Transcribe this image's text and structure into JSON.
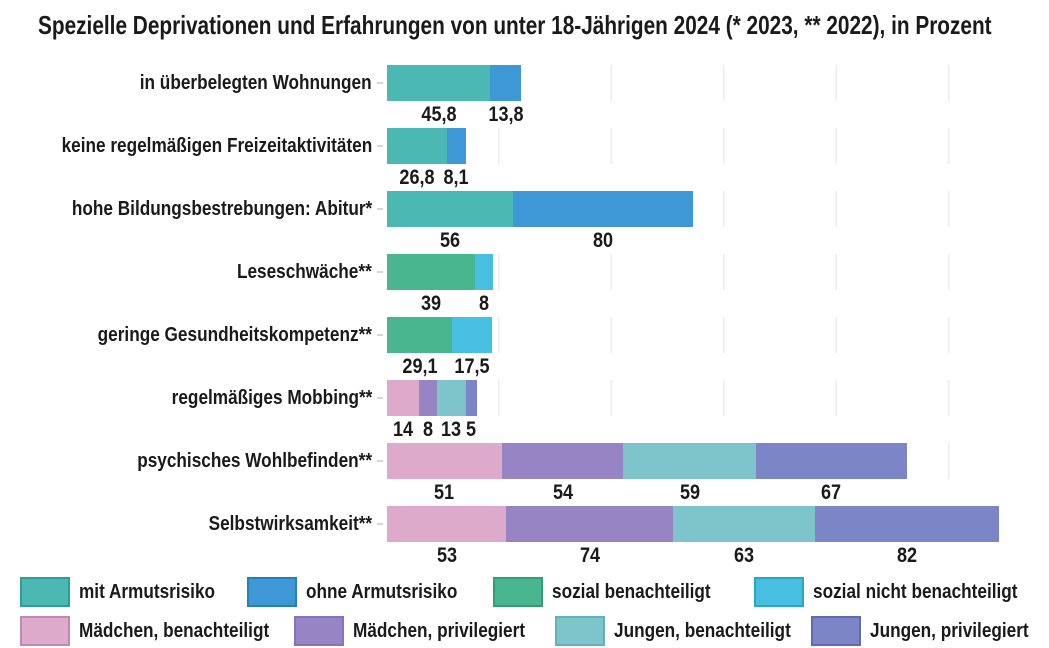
{
  "title": "Spezielle Deprivationen und Erfahrungen von unter 18-Jährigen 2024 (* 2023, ** 2022), in Prozent",
  "text_color": "#1a1a1a",
  "grid_color": "#ececec",
  "chart_data": {
    "type": "bar",
    "orientation": "horizontal",
    "stacked": true,
    "unit": "Prozent",
    "xlim": [
      0,
      294
    ],
    "x_gridline_interval": 50,
    "grid": true,
    "legend_position": "bottom",
    "series": [
      {
        "name": "mit Armutsrisiko",
        "color": "#4cb8b4",
        "border": "#2d9e9a"
      },
      {
        "name": "ohne Armutsrisiko",
        "color": "#3e98d6",
        "border": "#2280bf"
      },
      {
        "name": "sozial benachteiligt",
        "color": "#4ab690",
        "border": "#2f9e78"
      },
      {
        "name": "sozial nicht benachteiligt",
        "color": "#46bfe1",
        "border": "#26a6c9"
      },
      {
        "name": "Mädchen, benachteiligt",
        "color": "#deaacb",
        "border": "#c387b3"
      },
      {
        "name": "Mädchen, privilegiert",
        "color": "#9784c4",
        "border": "#8673bb"
      },
      {
        "name": "Jungen, benachteiligt",
        "color": "#7ec5cb",
        "border": "#60b1b9"
      },
      {
        "name": "Jungen, privilegiert",
        "color": "#7c86c6",
        "border": "#5f6cb4"
      }
    ],
    "rows": [
      {
        "label": "in überbelegten Wohnungen",
        "segments": [
          {
            "series": 0,
            "value": 45.8,
            "text": "45,8"
          },
          {
            "series": 1,
            "value": 13.8,
            "text": "13,8"
          }
        ]
      },
      {
        "label": "keine regelmäßigen Freizeitaktivitäten",
        "segments": [
          {
            "series": 0,
            "value": 26.8,
            "text": "26,8"
          },
          {
            "series": 1,
            "value": 8.1,
            "text": "8,1"
          }
        ]
      },
      {
        "label": "hohe Bildungsbestrebungen: Abitur*",
        "segments": [
          {
            "series": 0,
            "value": 56,
            "text": "56"
          },
          {
            "series": 1,
            "value": 80,
            "text": "80"
          }
        ]
      },
      {
        "label": "Leseschwäche**",
        "segments": [
          {
            "series": 2,
            "value": 39,
            "text": "39"
          },
          {
            "series": 3,
            "value": 8,
            "text": "8"
          }
        ]
      },
      {
        "label": "geringe Gesundheitskompetenz**",
        "segments": [
          {
            "series": 2,
            "value": 29.1,
            "text": "29,1"
          },
          {
            "series": 3,
            "value": 17.5,
            "text": "17,5"
          }
        ]
      },
      {
        "label": "regelmäßiges Mobbing**",
        "segments": [
          {
            "series": 4,
            "value": 14,
            "text": "14"
          },
          {
            "series": 5,
            "value": 8,
            "text": "8"
          },
          {
            "series": 6,
            "value": 13,
            "text": "13"
          },
          {
            "series": 7,
            "value": 5,
            "text": "5"
          }
        ]
      },
      {
        "label": "psychisches Wohlbefinden**",
        "segments": [
          {
            "series": 4,
            "value": 51,
            "text": "51"
          },
          {
            "series": 5,
            "value": 54,
            "text": "54"
          },
          {
            "series": 6,
            "value": 59,
            "text": "59"
          },
          {
            "series": 7,
            "value": 67,
            "text": "67"
          }
        ]
      },
      {
        "label": "Selbstwirksamkeit**",
        "segments": [
          {
            "series": 4,
            "value": 53,
            "text": "53"
          },
          {
            "series": 5,
            "value": 74,
            "text": "74"
          },
          {
            "series": 6,
            "value": 63,
            "text": "63"
          },
          {
            "series": 7,
            "value": 82,
            "text": "82"
          }
        ]
      }
    ],
    "legend_rows": [
      [
        0,
        1,
        2,
        3
      ],
      [
        4,
        5,
        6,
        7
      ]
    ]
  }
}
